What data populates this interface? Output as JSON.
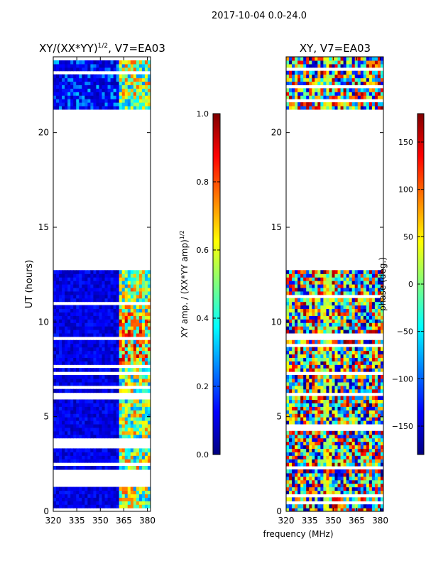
{
  "figure": {
    "suptitle": "2017-10-04 0.0-24.0",
    "xlabel": "frequency (MHz)"
  },
  "chart_data": [
    {
      "type": "heatmap",
      "title_base": "XY/(XX*YY)",
      "title_exponent": "1/2",
      "title_suffix": ", V7=EA03",
      "xlabel": "",
      "ylabel": "UT (hours)",
      "xlim": [
        320,
        382
      ],
      "ylim": [
        0,
        24
      ],
      "xticks": [
        320,
        335,
        350,
        365,
        380
      ],
      "yticks": [
        0,
        5,
        10,
        15,
        20
      ],
      "data_gap_hours": [
        12.8,
        21.2
      ],
      "colorbar": {
        "label_base": "XY amp. / (XX*YY amp)",
        "label_exponent": "1/2",
        "range": [
          0.0,
          1.0
        ],
        "ticks": [
          "0.0",
          "0.2",
          "0.4",
          "0.6",
          "0.8",
          "1.0"
        ]
      }
    },
    {
      "type": "heatmap",
      "title": "XY, V7=EA03",
      "xlabel": "",
      "ylabel": "",
      "xlim": [
        320,
        382
      ],
      "ylim": [
        0,
        24
      ],
      "xticks": [
        320,
        335,
        350,
        365,
        380
      ],
      "yticks": [
        0,
        5,
        10,
        15,
        20
      ],
      "data_gap_hours": [
        12.8,
        21.2
      ],
      "colorbar": {
        "label": "phase (deg.)",
        "range": [
          -180,
          180
        ],
        "ticks": [
          "−150",
          "−100",
          "−50",
          "0",
          "50",
          "100",
          "150"
        ]
      }
    }
  ],
  "colors": {
    "jet": [
      "#00007f",
      "#0000ff",
      "#007fff",
      "#00ffff",
      "#7fff7f",
      "#ffff00",
      "#ff7f00",
      "#ff0000",
      "#7f0000"
    ]
  }
}
